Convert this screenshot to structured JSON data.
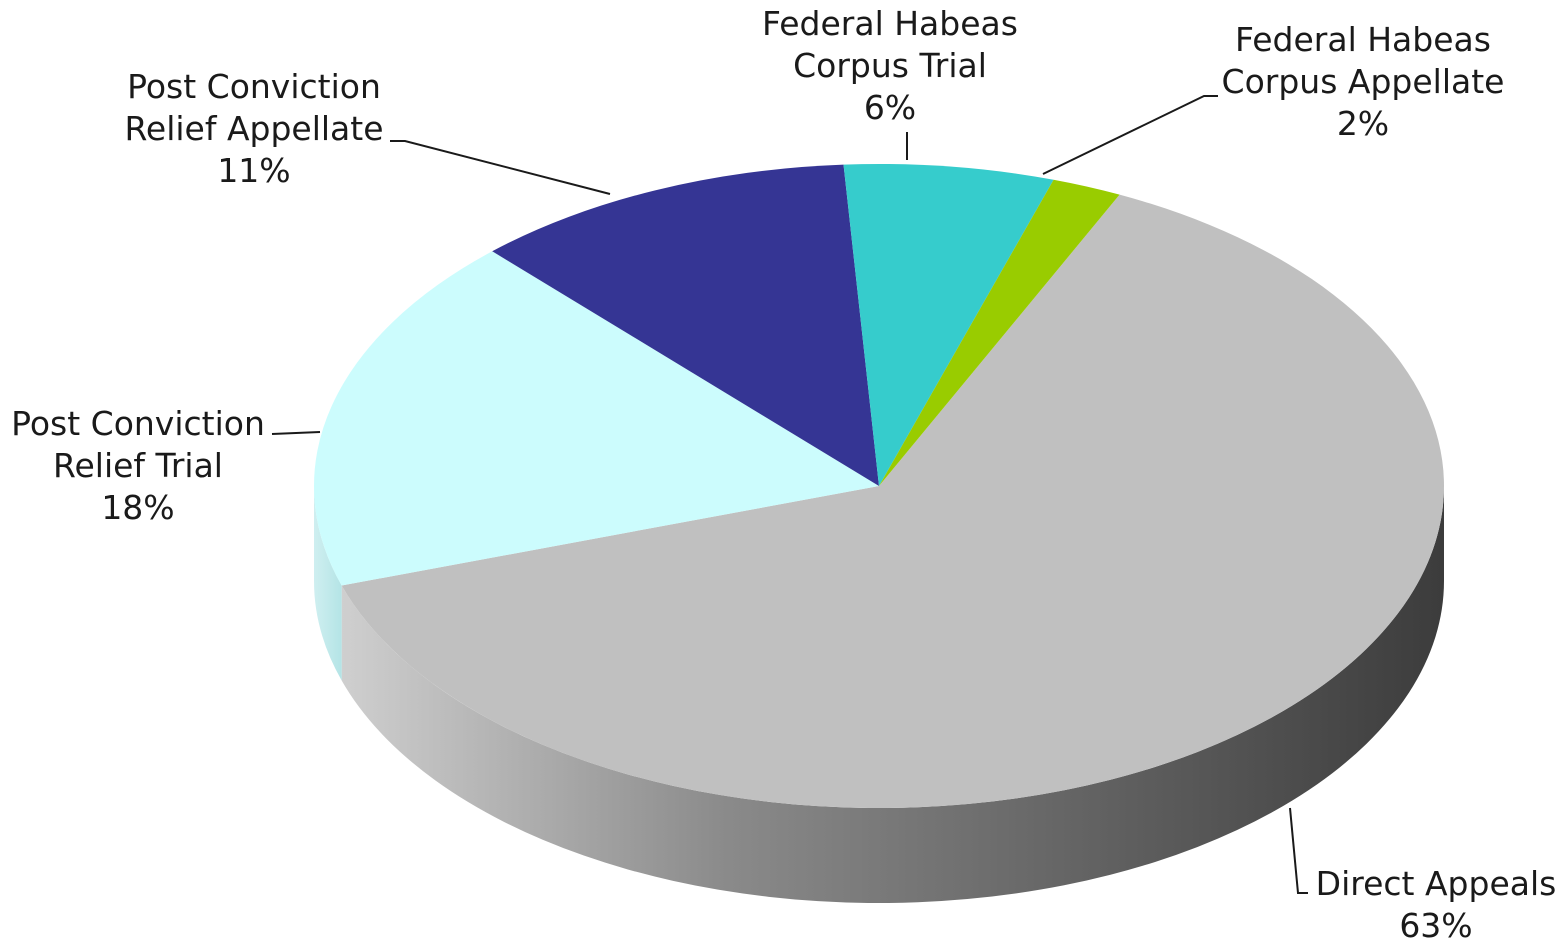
{
  "chart_data": {
    "type": "pie",
    "title": "",
    "style": "3d",
    "slices": [
      {
        "label_lines": [
          "Direct Appeals"
        ],
        "value_text": "63%",
        "value": 63,
        "color": "#c0c0c0",
        "side_color": "#7a7a7a"
      },
      {
        "label_lines": [
          "Post Conviction",
          "Relief Trial"
        ],
        "value_text": "18%",
        "value": 18,
        "color": "#ccfcfd",
        "side_color": "#a6e3e6"
      },
      {
        "label_lines": [
          "Post Conviction",
          "Relief Appellate"
        ],
        "value_text": "11%",
        "value": 11,
        "color": "#353594",
        "side_color": "#22226a"
      },
      {
        "label_lines": [
          "Federal Habeas",
          "Corpus Trial"
        ],
        "value_text": "6%",
        "value": 6,
        "color": "#36cccc",
        "side_color": "#229999"
      },
      {
        "label_lines": [
          "Federal Habeas",
          "Corpus Appellate"
        ],
        "value_text": "2%",
        "value": 2,
        "color": "#99cc00",
        "side_color": "#6f9400"
      }
    ]
  }
}
